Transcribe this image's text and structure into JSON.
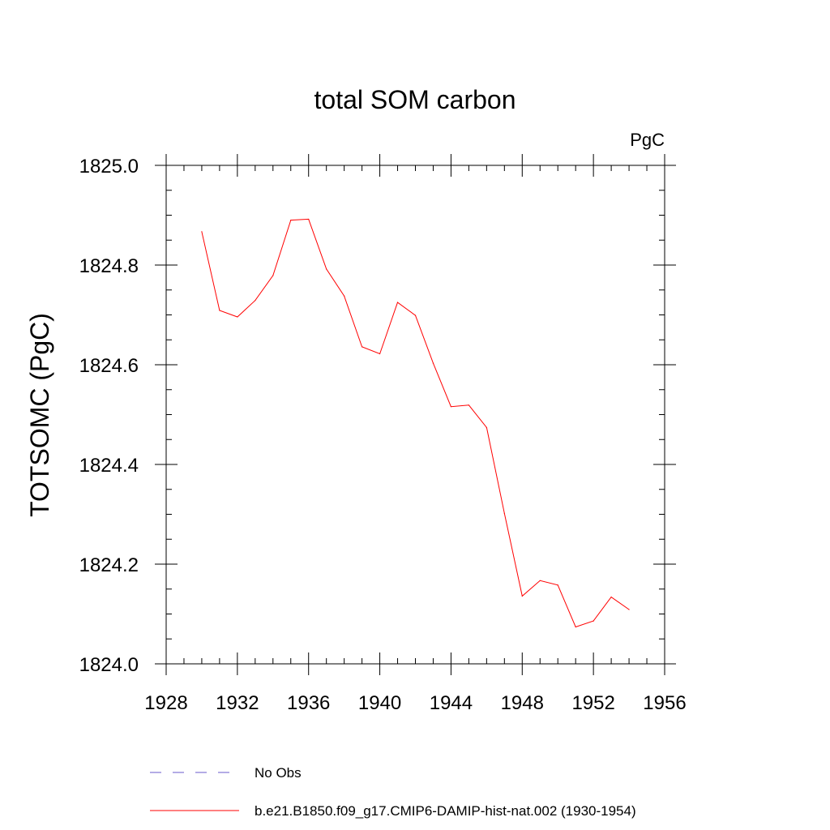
{
  "chart_data": {
    "type": "line",
    "title": "total SOM carbon",
    "units": "PgC",
    "ylabel": "TOTSOMC  (PgC)",
    "xlabel": "",
    "xlim": [
      1928,
      1956
    ],
    "ylim": [
      1824.0,
      1825.0
    ],
    "x_ticks": [
      1928,
      1932,
      1936,
      1940,
      1944,
      1948,
      1952,
      1956
    ],
    "x_tick_labels": [
      "1928",
      "1932",
      "1936",
      "1940",
      "1944",
      "1948",
      "1952",
      "1956"
    ],
    "y_ticks": [
      1824.0,
      1824.2,
      1824.4,
      1824.6,
      1824.8,
      1825.0
    ],
    "y_tick_labels": [
      "1824.0",
      "1824.2",
      "1824.4",
      "1824.6",
      "1824.8",
      "1825.0"
    ],
    "grid": false,
    "legend_position": "bottom",
    "series": [
      {
        "name": "b.e21.B1850.f09_g17.CMIP6-DAMIP-hist-nat.002 (1930-1954)",
        "color": "#ff0000",
        "style": "solid",
        "x": [
          1930,
          1931,
          1932,
          1933,
          1934,
          1935,
          1936,
          1937,
          1938,
          1939,
          1940,
          1941,
          1942,
          1943,
          1944,
          1945,
          1946,
          1947,
          1948,
          1949,
          1950,
          1951,
          1952,
          1953,
          1954
        ],
        "y": [
          1824.867,
          1824.709,
          1824.696,
          1824.729,
          1824.779,
          1824.89,
          1824.892,
          1824.792,
          1824.738,
          1824.636,
          1824.622,
          1824.725,
          1824.699,
          1824.603,
          1824.516,
          1824.519,
          1824.474,
          1824.302,
          1824.136,
          1824.167,
          1824.158,
          1824.074,
          1824.086,
          1824.134,
          1824.109
        ]
      }
    ],
    "legend": [
      {
        "label": "No Obs",
        "color": "#6a5acd",
        "style": "dashed"
      },
      {
        "label": "b.e21.B1850.f09_g17.CMIP6-DAMIP-hist-nat.002 (1930-1954)",
        "color": "#ff0000",
        "style": "solid"
      }
    ]
  }
}
